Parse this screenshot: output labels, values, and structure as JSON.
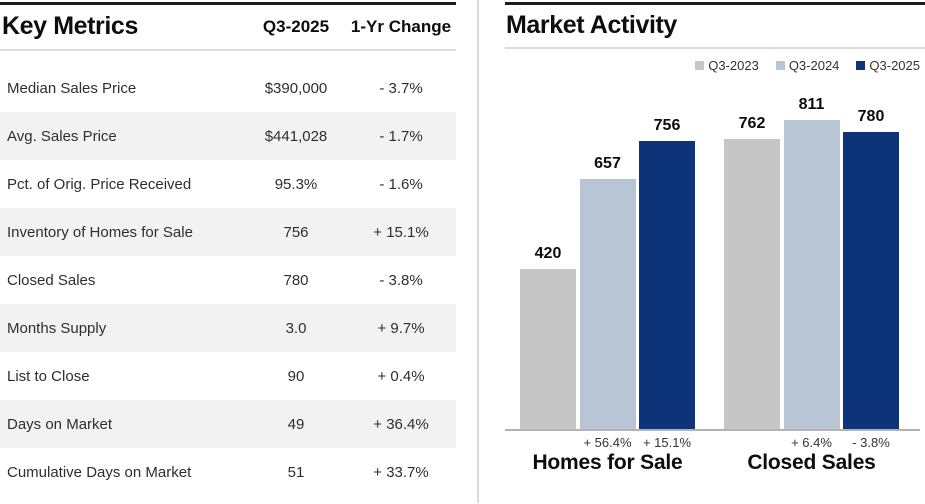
{
  "key_metrics": {
    "title": "Key Metrics",
    "columns": [
      "Q3-2025",
      "1-Yr Change"
    ],
    "rows": [
      {
        "label": "Median Sales Price",
        "value": "$390,000",
        "change": "- 3.7%"
      },
      {
        "label": "Avg. Sales Price",
        "value": "$441,028",
        "change": "- 1.7%"
      },
      {
        "label": "Pct. of Orig. Price Received",
        "value": "95.3%",
        "change": "- 1.6%"
      },
      {
        "label": "Inventory of Homes for Sale",
        "value": "756",
        "change": "+ 15.1%"
      },
      {
        "label": "Closed Sales",
        "value": "780",
        "change": "- 3.8%"
      },
      {
        "label": "Months Supply",
        "value": "3.0",
        "change": "+ 9.7%"
      },
      {
        "label": "List to Close",
        "value": "90",
        "change": "+ 0.4%"
      },
      {
        "label": "Days on Market",
        "value": "49",
        "change": "+ 36.4%"
      },
      {
        "label": "Cumulative Days on Market",
        "value": "51",
        "change": "+ 33.7%"
      }
    ]
  },
  "market_activity": {
    "title": "Market Activity"
  },
  "chart_data": {
    "type": "bar",
    "title": "Market Activity",
    "categories": [
      "Homes for Sale",
      "Closed Sales"
    ],
    "series": [
      {
        "name": "Q3-2023",
        "color": "#c6c6c6",
        "values": [
          420,
          762
        ]
      },
      {
        "name": "Q3-2024",
        "color": "#b7c5d5",
        "values": [
          657,
          811
        ]
      },
      {
        "name": "Q3-2025",
        "color": "#0d3478",
        "values": [
          756,
          780
        ]
      }
    ],
    "bar_value_labels": [
      [
        420,
        657,
        756
      ],
      [
        762,
        811,
        780
      ]
    ],
    "pct_changes": [
      [
        "+ 56.4%",
        "+ 15.1%"
      ],
      [
        "+ 6.4%",
        "- 3.8%"
      ]
    ],
    "ylim": [
      0,
      811
    ],
    "grid": false,
    "legend_position": "top-right"
  }
}
